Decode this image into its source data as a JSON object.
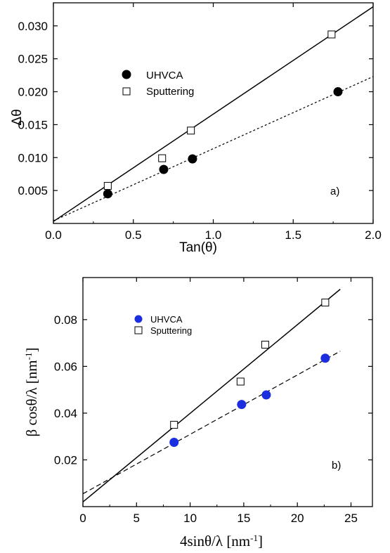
{
  "chart_data": [
    {
      "type": "scatter",
      "panel_label": "a)",
      "xlabel": "Tan(θ)",
      "ylabel": "Δθ",
      "xlim": [
        0,
        2
      ],
      "ylim": [
        0,
        0.0335
      ],
      "xticks": [
        "0.0",
        "0.5",
        "1.0",
        "1.5",
        "2.0"
      ],
      "yticks": [
        "0.005",
        "0.010",
        "0.015",
        "0.020",
        "0.025",
        "0.030"
      ],
      "xtick_values": [
        0,
        0.5,
        1.0,
        1.5,
        2.0
      ],
      "ytick_values": [
        0.005,
        0.01,
        0.015,
        0.02,
        0.025,
        0.03
      ],
      "legend_position": "upper-left",
      "series": [
        {
          "name": "UHVCA",
          "marker": "filled-circle",
          "color": "#000000",
          "x": [
            0.34,
            0.69,
            0.87,
            1.78
          ],
          "y": [
            0.0045,
            0.0082,
            0.0098,
            0.02
          ],
          "fit": {
            "style": "dashed",
            "x": [
              0.0,
              2.0
            ],
            "y": [
              0.0004,
              0.0223
            ]
          }
        },
        {
          "name": "Sputtering",
          "marker": "open-square",
          "color": "#000000",
          "x": [
            0.34,
            0.68,
            0.86,
            1.74
          ],
          "y": [
            0.0057,
            0.0099,
            0.0141,
            0.0287
          ],
          "fit": {
            "style": "solid",
            "x": [
              0.0,
              2.0
            ],
            "y": [
              0.0003,
              0.0329
            ]
          }
        }
      ]
    },
    {
      "type": "scatter",
      "panel_label": "b)",
      "xlabel_main": "4sinθ/λ [nm",
      "xlabel_sup": "-1",
      "xlabel_end": "]",
      "ylabel_main": "β cosθ/λ [nm",
      "ylabel_sup": "-1",
      "ylabel_end": "]",
      "xlim": [
        0,
        27
      ],
      "ylim": [
        0.0,
        0.098
      ],
      "xticks": [
        "0",
        "5",
        "10",
        "15",
        "20",
        "25"
      ],
      "yticks": [
        "0.02",
        "0.04",
        "0.06",
        "0.08"
      ],
      "xtick_values": [
        0,
        5,
        10,
        15,
        20,
        25
      ],
      "ytick_values": [
        0.02,
        0.04,
        0.06,
        0.08
      ],
      "legend_position": "upper-left",
      "series": [
        {
          "name": "UHVCA",
          "marker": "filled-circle",
          "color": "#1c2fe0",
          "x": [
            8.5,
            14.8,
            17.1,
            22.6
          ],
          "y": [
            0.0275,
            0.0437,
            0.0478,
            0.0635
          ],
          "fit": {
            "style": "dashed",
            "x": [
              0.0,
              24.0
            ],
            "y": [
              0.0055,
              0.0665
            ]
          }
        },
        {
          "name": "Sputtering",
          "marker": "open-square",
          "color": "#000000",
          "x": [
            8.5,
            14.7,
            17.0,
            22.6
          ],
          "y": [
            0.035,
            0.0535,
            0.0693,
            0.0873
          ],
          "fit": {
            "style": "solid",
            "x": [
              0.0,
              24.0
            ],
            "y": [
              0.002,
              0.093
            ]
          }
        }
      ]
    }
  ]
}
